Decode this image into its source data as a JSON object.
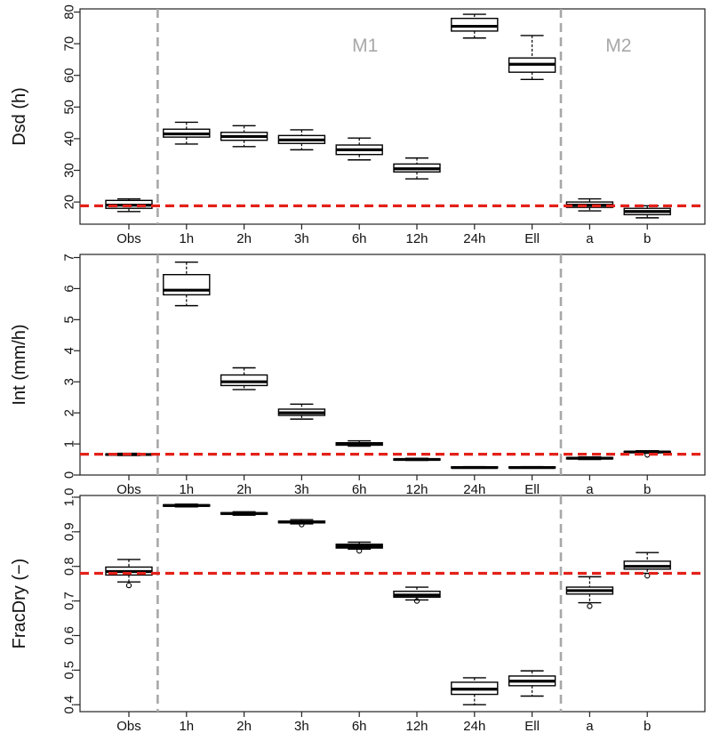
{
  "chart_data": [
    {
      "type": "boxplot",
      "ylabel": "Dsd (h)",
      "categories": [
        "Obs",
        "1h",
        "2h",
        "3h",
        "6h",
        "12h",
        "24h",
        "Ell",
        "a",
        "b"
      ],
      "ylim": [
        13,
        81
      ],
      "yticks": [
        20,
        30,
        40,
        50,
        60,
        70,
        80
      ],
      "reference_line": 18.8,
      "group_labels": [
        {
          "text": "M1"
        },
        {
          "text": "M2"
        }
      ],
      "boxes": [
        {
          "min": 17.0,
          "q1": 18.0,
          "median": 19.0,
          "q3": 20.5,
          "max": 21.0,
          "outliers": []
        },
        {
          "min": 38.3,
          "q1": 40.5,
          "median": 41.5,
          "q3": 43.0,
          "max": 45.2,
          "outliers": []
        },
        {
          "min": 37.5,
          "q1": 39.5,
          "median": 40.7,
          "q3": 42.0,
          "max": 44.1,
          "outliers": []
        },
        {
          "min": 36.5,
          "q1": 38.5,
          "median": 39.6,
          "q3": 41.0,
          "max": 42.8,
          "outliers": []
        },
        {
          "min": 33.3,
          "q1": 35.0,
          "median": 36.5,
          "q3": 38.0,
          "max": 40.2,
          "outliers": []
        },
        {
          "min": 27.3,
          "q1": 29.5,
          "median": 30.5,
          "q3": 32.0,
          "max": 33.9,
          "outliers": []
        },
        {
          "min": 71.8,
          "q1": 74.0,
          "median": 75.5,
          "q3": 78.0,
          "max": 79.3,
          "outliers": []
        },
        {
          "min": 58.7,
          "q1": 61.0,
          "median": 63.5,
          "q3": 65.5,
          "max": 72.6,
          "outliers": []
        },
        {
          "min": 17.2,
          "q1": 18.3,
          "median": 19.0,
          "q3": 20.0,
          "max": 21.0,
          "outliers": []
        },
        {
          "min": 15.0,
          "q1": 16.0,
          "median": 17.0,
          "q3": 18.0,
          "max": 18.8,
          "outliers": []
        }
      ]
    },
    {
      "type": "boxplot",
      "ylabel": "Int (mm/h)",
      "categories": [
        "Obs",
        "1h",
        "2h",
        "3h",
        "6h",
        "12h",
        "24h",
        "Ell",
        "a",
        "b"
      ],
      "ylim": [
        0,
        7.1
      ],
      "yticks": [
        0,
        1,
        2,
        3,
        4,
        5,
        6,
        7
      ],
      "reference_line": 0.67,
      "group_labels": [],
      "boxes": [
        {
          "min": 0.63,
          "q1": 0.64,
          "median": 0.66,
          "q3": 0.68,
          "max": 0.7,
          "outliers": []
        },
        {
          "min": 5.45,
          "q1": 5.8,
          "median": 5.95,
          "q3": 6.45,
          "max": 6.85,
          "outliers": []
        },
        {
          "min": 2.75,
          "q1": 2.88,
          "median": 3.0,
          "q3": 3.22,
          "max": 3.45,
          "outliers": []
        },
        {
          "min": 1.8,
          "q1": 1.92,
          "median": 2.0,
          "q3": 2.12,
          "max": 2.28,
          "outliers": []
        },
        {
          "min": 0.93,
          "q1": 0.96,
          "median": 0.99,
          "q3": 1.04,
          "max": 1.1,
          "outliers": []
        },
        {
          "min": 0.47,
          "q1": 0.48,
          "median": 0.5,
          "q3": 0.52,
          "max": 0.54,
          "outliers": []
        },
        {
          "min": 0.22,
          "q1": 0.23,
          "median": 0.24,
          "q3": 0.26,
          "max": 0.27,
          "outliers": []
        },
        {
          "min": 0.22,
          "q1": 0.23,
          "median": 0.24,
          "q3": 0.26,
          "max": 0.27,
          "outliers": []
        },
        {
          "min": 0.5,
          "q1": 0.52,
          "median": 0.54,
          "q3": 0.56,
          "max": 0.58,
          "outliers": []
        },
        {
          "min": 0.7,
          "q1": 0.72,
          "median": 0.74,
          "q3": 0.76,
          "max": 0.78,
          "outliers": [
            0.65
          ]
        }
      ]
    },
    {
      "type": "boxplot",
      "ylabel": "FracDry (−)",
      "categories": [
        "Obs",
        "1h",
        "2h",
        "3h",
        "6h",
        "12h",
        "24h",
        "Ell",
        "a",
        "b"
      ],
      "ylim": [
        0.38,
        1.005
      ],
      "yticks": [
        0.4,
        0.5,
        0.6,
        0.7,
        0.8,
        0.9,
        1.0
      ],
      "yticklabels": [
        "0.4",
        "0.5",
        "0.6",
        "0.7",
        "0.8",
        "0.9",
        "1.0"
      ],
      "reference_line": 0.78,
      "group_labels": [],
      "boxes": [
        {
          "min": 0.755,
          "q1": 0.775,
          "median": 0.785,
          "q3": 0.798,
          "max": 0.82,
          "outliers": [
            0.745
          ]
        },
        {
          "min": 0.972,
          "q1": 0.974,
          "median": 0.976,
          "q3": 0.978,
          "max": 0.98,
          "outliers": []
        },
        {
          "min": 0.948,
          "q1": 0.951,
          "median": 0.953,
          "q3": 0.955,
          "max": 0.958,
          "outliers": []
        },
        {
          "min": 0.923,
          "q1": 0.926,
          "median": 0.928,
          "q3": 0.931,
          "max": 0.935,
          "outliers": [
            0.921
          ]
        },
        {
          "min": 0.85,
          "q1": 0.853,
          "median": 0.858,
          "q3": 0.864,
          "max": 0.87,
          "outliers": [
            0.845
          ]
        },
        {
          "min": 0.703,
          "q1": 0.711,
          "median": 0.717,
          "q3": 0.728,
          "max": 0.74,
          "outliers": [
            0.7
          ]
        },
        {
          "min": 0.4,
          "q1": 0.43,
          "median": 0.445,
          "q3": 0.465,
          "max": 0.478,
          "outliers": []
        },
        {
          "min": 0.425,
          "q1": 0.455,
          "median": 0.468,
          "q3": 0.483,
          "max": 0.498,
          "outliers": []
        },
        {
          "min": 0.695,
          "q1": 0.72,
          "median": 0.73,
          "q3": 0.74,
          "max": 0.77,
          "outliers": [
            0.685
          ]
        },
        {
          "min": 0.78,
          "q1": 0.792,
          "median": 0.8,
          "q3": 0.815,
          "max": 0.84,
          "outliers": [
            0.773
          ]
        }
      ]
    }
  ],
  "colors": {
    "reference_line": "#e32119",
    "separator": "#a8a8a8",
    "group_label": "#a8a8a8",
    "box_stroke": "#000000",
    "axis": "#222222"
  }
}
